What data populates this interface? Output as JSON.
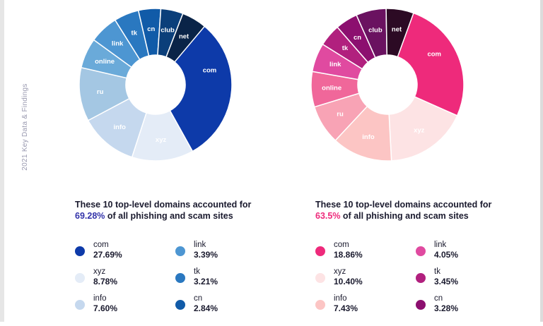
{
  "side_label": "2021 Key Data & Findings",
  "chart_data": [
    {
      "type": "pie",
      "variant": "donut",
      "series": [
        {
          "label": "com",
          "value": 27.69,
          "color": "#0d3aa9"
        },
        {
          "label": "xyz",
          "value": 8.78,
          "color": "#e4ecf7"
        },
        {
          "label": "info",
          "value": 7.6,
          "color": "#c5d8ee"
        },
        {
          "label": "ru",
          "value": null,
          "color": "#a4c7e3"
        },
        {
          "label": "online",
          "value": null,
          "color": "#6aaad9"
        },
        {
          "label": "link",
          "value": 3.39,
          "color": "#4d96d2"
        },
        {
          "label": "tk",
          "value": 3.21,
          "color": "#2a78c0"
        },
        {
          "label": "cn",
          "value": 2.84,
          "color": "#115ba8"
        },
        {
          "label": "club",
          "value": null,
          "color": "#0b3f7a"
        },
        {
          "label": "net",
          "value": null,
          "color": "#0a2448"
        }
      ]
    },
    {
      "type": "pie",
      "variant": "donut",
      "series": [
        {
          "label": "com",
          "value": 18.86,
          "color": "#ee2a7b"
        },
        {
          "label": "xyz",
          "value": 10.4,
          "color": "#fde3e4"
        },
        {
          "label": "info",
          "value": 7.43,
          "color": "#fcc5c4"
        },
        {
          "label": "ru",
          "value": null,
          "color": "#f8a3b5"
        },
        {
          "label": "online",
          "value": null,
          "color": "#f0679a"
        },
        {
          "label": "link",
          "value": 4.05,
          "color": "#e04aa0"
        },
        {
          "label": "tk",
          "value": 3.45,
          "color": "#b1207e"
        },
        {
          "label": "cn",
          "value": 3.28,
          "color": "#8c0f6f"
        },
        {
          "label": "club",
          "value": null,
          "color": "#6a1260"
        },
        {
          "label": "net",
          "value": null,
          "color": "#2c0a24"
        }
      ]
    }
  ],
  "panels": [
    {
      "heading_line1": "These 10 top-level domains accounted for",
      "heading_pct": "69.28%",
      "heading_rest": " of all phishing and scam sites",
      "pct_color": "#3333aa",
      "legend": [
        {
          "label": "com",
          "value": "27.69%",
          "color": "#0d3aa9"
        },
        {
          "label": "xyz",
          "value": "8.78%",
          "color": "#e4ecf7"
        },
        {
          "label": "info",
          "value": "7.60%",
          "color": "#c5d8ee"
        },
        {
          "label": "link",
          "value": "3.39%",
          "color": "#4d96d2"
        },
        {
          "label": "tk",
          "value": "3.21%",
          "color": "#2a78c0"
        },
        {
          "label": "cn",
          "value": "2.84%",
          "color": "#115ba8"
        }
      ]
    },
    {
      "heading_line1": "These 10 top-level domains accounted for",
      "heading_pct": "63.5%",
      "heading_rest": " of all phishing and scam sites",
      "pct_color": "#ee2a7b",
      "legend": [
        {
          "label": "com",
          "value": "18.86%",
          "color": "#ee2a7b"
        },
        {
          "label": "xyz",
          "value": "10.40%",
          "color": "#fde3e4"
        },
        {
          "label": "info",
          "value": "7.43%",
          "color": "#fcc5c4"
        },
        {
          "label": "link",
          "value": "4.05%",
          "color": "#e04aa0"
        },
        {
          "label": "tk",
          "value": "3.45%",
          "color": "#b1207e"
        },
        {
          "label": "cn",
          "value": "3.28%",
          "color": "#8c0f6f"
        }
      ]
    }
  ]
}
